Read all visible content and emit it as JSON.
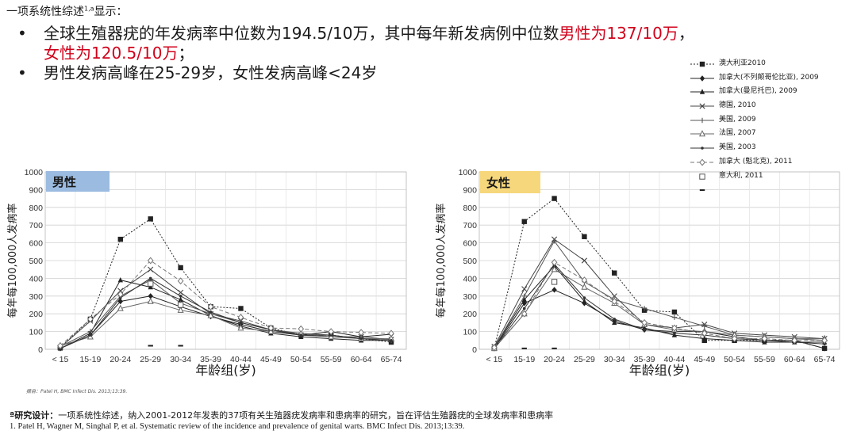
{
  "intro": {
    "text": "一项系统性综述",
    "sup": "1,a",
    "after": "显示："
  },
  "bullets": [
    {
      "line1_a": "全球生殖器疣的年发病率中位数为194.5/10万，其中每年新发病例中位数",
      "line1_red": "男性为137/10万",
      "line1_b": "，",
      "line2_red": "女性为120.5/10万",
      "line2_b": "；"
    },
    {
      "text": "男性发病高峰在25-29岁，女性发病高峰<24岁"
    }
  ],
  "legend": [
    {
      "label": "澳大利亚2010",
      "marker": "filled-square",
      "dash": "dotted",
      "color": "#222222"
    },
    {
      "label": "加拿大(不列颠哥伦比亚), 2009",
      "marker": "filled-diamond",
      "dash": "solid",
      "color": "#222222"
    },
    {
      "label": "加拿大(曼尼托巴), 2009",
      "marker": "filled-triangle",
      "dash": "solid",
      "color": "#222222"
    },
    {
      "label": "德国, 2010",
      "marker": "x",
      "dash": "solid",
      "color": "#444444"
    },
    {
      "label": "美国, 2009",
      "marker": "plus",
      "dash": "solid",
      "color": "#555555"
    },
    {
      "label": "法国, 2007",
      "marker": "open-triangle",
      "dash": "solid",
      "color": "#666666"
    },
    {
      "label": "美国, 2003",
      "marker": "dot",
      "dash": "solid",
      "color": "#333333"
    },
    {
      "label": "加拿大 (魁北克), 2011",
      "marker": "open-diamond",
      "dash": "dashed",
      "color": "#777777"
    },
    {
      "label": "意大利, 2011",
      "marker": "open-square",
      "dash": "none",
      "color": "#555555"
    },
    {
      "label": "",
      "marker": "dash",
      "dash": "none",
      "color": "#222222"
    }
  ],
  "chart_data": [
    {
      "type": "line",
      "title": "男性",
      "title_bg": "#9bbbe0",
      "xlabel": "年龄组(岁)",
      "ylabel": "每年每100,000人发病率",
      "ylim": [
        0,
        1000
      ],
      "yticks": [
        "0",
        "100",
        "200",
        "300",
        "400",
        "500",
        "600",
        "700",
        "800",
        "900",
        "1000"
      ],
      "categories": [
        "< 15",
        "15-19",
        "20-24",
        "25-29",
        "30-34",
        "35-39",
        "40-44",
        "45-49",
        "50-54",
        "55-59",
        "60-64",
        "65-74"
      ],
      "series": [
        {
          "name": "澳大利亚2010",
          "values": [
            10,
            170,
            620,
            735,
            460,
            240,
            230,
            120,
            80,
            80,
            60,
            40
          ]
        },
        {
          "name": "加拿大(不列颠哥伦比亚), 2009",
          "values": [
            5,
            80,
            270,
            300,
            240,
            185,
            140,
            100,
            80,
            100,
            70,
            85
          ]
        },
        {
          "name": "加拿大(曼尼托巴), 2009",
          "values": [
            5,
            90,
            390,
            350,
            280,
            190,
            130,
            90,
            70,
            60,
            50,
            50
          ]
        },
        {
          "name": "德国, 2010",
          "values": [
            10,
            160,
            330,
            450,
            320,
            200,
            160,
            110,
            80,
            70,
            70,
            55
          ]
        },
        {
          "name": "美国, 2009",
          "values": [
            15,
            100,
            300,
            390,
            260,
            200,
            150,
            110,
            90,
            80,
            60,
            50
          ]
        },
        {
          "name": "法国, 2007",
          "values": [
            20,
            70,
            230,
            270,
            220,
            190,
            120,
            100,
            90,
            70,
            60,
            60
          ]
        },
        {
          "name": "美国, 2003",
          "values": [
            5,
            80,
            290,
            400,
            300,
            210,
            150,
            110,
            80,
            80,
            60,
            50
          ]
        },
        {
          "name": "加拿大 (魁北克), 2011",
          "values": [
            20,
            170,
            310,
            500,
            385,
            240,
            180,
            120,
            115,
            100,
            95,
            90
          ]
        },
        {
          "name": "意大利, 2011",
          "values": [
            null,
            null,
            null,
            370,
            250,
            null,
            null,
            null,
            null,
            null,
            null,
            null
          ]
        },
        {
          "name": "",
          "values": [
            null,
            null,
            null,
            20,
            20,
            null,
            null,
            null,
            null,
            null,
            null,
            null
          ]
        }
      ]
    },
    {
      "type": "line",
      "title": "女性",
      "title_bg": "#f6d77b",
      "xlabel": "年龄组(岁)",
      "ylabel": "每年每100,000人发病率",
      "ylim": [
        0,
        1000
      ],
      "yticks": [
        "0",
        "100",
        "200",
        "300",
        "400",
        "500",
        "600",
        "700",
        "800",
        "900",
        "1000"
      ],
      "categories": [
        "< 15",
        "15-19",
        "20-24",
        "25-29",
        "30-34",
        "35-39",
        "40-44",
        "45-49",
        "50-54",
        "55-59",
        "60-64",
        "65-74"
      ],
      "series": [
        {
          "name": "澳大利亚2010",
          "values": [
            5,
            720,
            850,
            635,
            430,
            220,
            210,
            50,
            50,
            50,
            50,
            5
          ]
        },
        {
          "name": "加拿大(不列颠哥伦比亚), 2009",
          "values": [
            5,
            260,
            335,
            260,
            160,
            110,
            100,
            100,
            70,
            50,
            50,
            5
          ]
        },
        {
          "name": "加拿大(曼尼托巴), 2009",
          "values": [
            10,
            280,
            470,
            270,
            150,
            120,
            80,
            60,
            50,
            40,
            40,
            40
          ]
        },
        {
          "name": "德国, 2010",
          "values": [
            15,
            340,
            620,
            500,
            300,
            140,
            120,
            140,
            90,
            80,
            70,
            60
          ]
        },
        {
          "name": "美国, 2009",
          "values": [
            10,
            300,
            610,
            380,
            280,
            230,
            180,
            130,
            80,
            70,
            60,
            50
          ]
        },
        {
          "name": "法国, 2007",
          "values": [
            5,
            200,
            450,
            350,
            260,
            140,
            110,
            100,
            80,
            70,
            60,
            60
          ]
        },
        {
          "name": "美国, 2003",
          "values": [
            5,
            230,
            480,
            290,
            170,
            110,
            90,
            80,
            60,
            50,
            40,
            30
          ]
        },
        {
          "name": "加拿大 (魁北克), 2011",
          "values": [
            10,
            200,
            490,
            390,
            270,
            150,
            120,
            90,
            60,
            60,
            50,
            50
          ]
        },
        {
          "name": "意大利, 2011",
          "values": [
            null,
            null,
            380,
            null,
            null,
            null,
            null,
            null,
            null,
            null,
            null,
            null
          ]
        },
        {
          "name": "",
          "values": [
            null,
            5,
            5,
            null,
            null,
            null,
            null,
            null,
            null,
            null,
            null,
            null
          ]
        }
      ]
    }
  ],
  "source_note": "摘自：Patel H, BMC Infect Dis. 2013;13:39.",
  "footer": {
    "design_label": "ª研究设计：",
    "design_text": "一项系统性综述，纳入2001-2012年发表的37项有关生殖器疣发病率和患病率的研究，旨在评估生殖器疣的全球发病率和患病率",
    "reference": "1. Patel H, Wagner M, Singhal P, et al. Systematic review of the incidence and prevalence of genital warts. BMC Infect Dis. 2013;13:39."
  }
}
